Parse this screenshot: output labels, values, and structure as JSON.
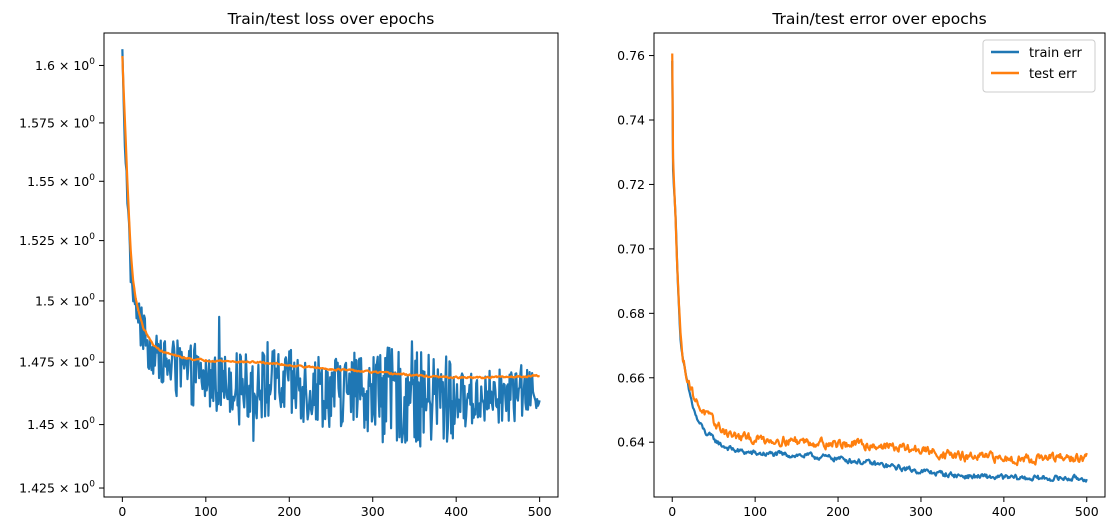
{
  "chart_data": [
    {
      "type": "line",
      "title": "Train/test loss over epochs",
      "xlabel": "",
      "ylabel": "",
      "yscale": "log",
      "xlim": [
        -22,
        522
      ],
      "ylim": [
        1.4215,
        1.6143
      ],
      "xticks": [
        0,
        100,
        200,
        300,
        400,
        500
      ],
      "yticks": [
        {
          "value": 1.425,
          "mantissa": "1.425"
        },
        {
          "value": 1.45,
          "mantissa": "1.45"
        },
        {
          "value": 1.475,
          "mantissa": "1.475"
        },
        {
          "value": 1.5,
          "mantissa": "1.5"
        },
        {
          "value": 1.525,
          "mantissa": "1.525"
        },
        {
          "value": 1.55,
          "mantissa": "1.55"
        },
        {
          "value": 1.575,
          "mantissa": "1.575"
        },
        {
          "value": 1.6,
          "mantissa": "1.6"
        }
      ],
      "tick_suffix": "× 10",
      "tick_exponent": "0",
      "grid": false,
      "legend": false,
      "series": [
        {
          "color": "#1f77b4",
          "style": "noisy",
          "x": [
            0,
            2,
            4,
            6,
            8,
            10,
            13,
            16,
            20,
            25,
            30,
            35,
            40,
            45,
            50,
            60,
            70,
            80,
            90,
            100,
            120,
            140,
            160,
            180,
            200,
            220,
            240,
            260,
            280,
            300,
            320,
            340,
            360,
            380,
            400,
            420,
            440,
            460,
            480,
            500
          ],
          "y": [
            1.605,
            1.575,
            1.56,
            1.545,
            1.525,
            1.512,
            1.503,
            1.498,
            1.492,
            1.486,
            1.482,
            1.479,
            1.477,
            1.476,
            1.475,
            1.473,
            1.471,
            1.47,
            1.469,
            1.468,
            1.467,
            1.467,
            1.466,
            1.466,
            1.465,
            1.465,
            1.464,
            1.463,
            1.463,
            1.462,
            1.462,
            1.461,
            1.46,
            1.46,
            1.46,
            1.46,
            1.461,
            1.462,
            1.463,
            1.463
          ],
          "noise": [
            0.005,
            0.009,
            0.012,
            0.015,
            0.019,
            0.011,
            0.009
          ]
        },
        {
          "color": "#ff7f0e",
          "style": "smooth",
          "x": [
            0,
            2,
            4,
            6,
            8,
            10,
            13,
            16,
            20,
            25,
            30,
            35,
            40,
            45,
            50,
            60,
            70,
            80,
            90,
            100,
            120,
            140,
            160,
            180,
            200,
            220,
            240,
            260,
            280,
            300,
            320,
            340,
            360,
            380,
            400,
            420,
            440,
            460,
            480,
            500
          ],
          "y": [
            1.604,
            1.585,
            1.568,
            1.55,
            1.535,
            1.521,
            1.508,
            1.501,
            1.495,
            1.489,
            1.486,
            1.483,
            1.481,
            1.48,
            1.479,
            1.478,
            1.477,
            1.4765,
            1.476,
            1.4758,
            1.4755,
            1.4752,
            1.475,
            1.4745,
            1.4738,
            1.4732,
            1.4725,
            1.472,
            1.4715,
            1.471,
            1.4705,
            1.47,
            1.4695,
            1.469,
            1.4688,
            1.4688,
            1.4689,
            1.469,
            1.4693,
            1.4696
          ],
          "noise": [
            0.0003
          ]
        }
      ]
    },
    {
      "type": "line",
      "title": "Train/test error over epochs",
      "xlabel": "",
      "ylabel": "",
      "yscale": "linear",
      "xlim": [
        -22,
        522
      ],
      "ylim": [
        0.623,
        0.767
      ],
      "xticks": [
        0,
        100,
        200,
        300,
        400,
        500
      ],
      "yticks": [
        {
          "value": 0.64,
          "label": "0.64"
        },
        {
          "value": 0.66,
          "label": "0.66"
        },
        {
          "value": 0.68,
          "label": "0.68"
        },
        {
          "value": 0.7,
          "label": "0.70"
        },
        {
          "value": 0.72,
          "label": "0.72"
        },
        {
          "value": 0.74,
          "label": "0.74"
        },
        {
          "value": 0.76,
          "label": "0.76"
        }
      ],
      "grid": false,
      "legend": "top-right",
      "series": [
        {
          "name": "train err",
          "color": "#1f77b4",
          "style": "smooth",
          "x": [
            0,
            1,
            2,
            4,
            6,
            8,
            10,
            13,
            16,
            20,
            25,
            30,
            40,
            50,
            60,
            70,
            80,
            100,
            150,
            200,
            250,
            300,
            350,
            400,
            450,
            500
          ],
          "y": [
            0.758,
            0.725,
            0.72,
            0.71,
            0.695,
            0.683,
            0.672,
            0.665,
            0.661,
            0.656,
            0.651,
            0.647,
            0.643,
            0.641,
            0.639,
            0.638,
            0.6372,
            0.6365,
            0.636,
            0.635,
            0.633,
            0.631,
            0.6295,
            0.629,
            0.6288,
            0.6288
          ],
          "noise": [
            0.0007
          ]
        },
        {
          "name": "test err",
          "color": "#ff7f0e",
          "style": "smooth",
          "x": [
            0,
            1,
            2,
            4,
            6,
            8,
            10,
            13,
            16,
            20,
            25,
            30,
            40,
            50,
            60,
            70,
            80,
            100,
            150,
            200,
            250,
            300,
            350,
            400,
            450,
            500
          ],
          "y": [
            0.76,
            0.727,
            0.721,
            0.711,
            0.696,
            0.684,
            0.673,
            0.666,
            0.662,
            0.659,
            0.655,
            0.652,
            0.649,
            0.646,
            0.644,
            0.6425,
            0.6415,
            0.641,
            0.6405,
            0.6395,
            0.639,
            0.6375,
            0.6355,
            0.635,
            0.635,
            0.635
          ],
          "noise": [
            0.0012
          ]
        }
      ]
    }
  ]
}
